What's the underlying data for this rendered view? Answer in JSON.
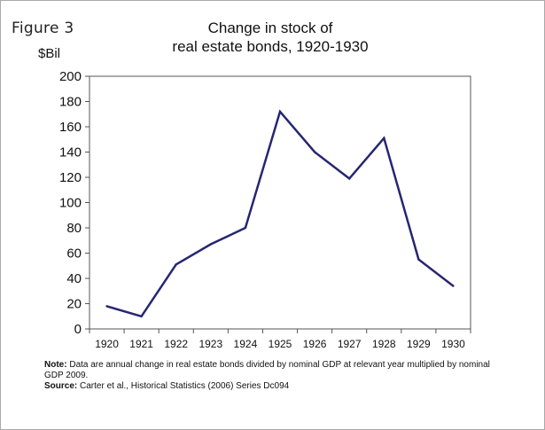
{
  "figure_label": "Figure 3",
  "chart_data": {
    "type": "line",
    "title": "Change in stock of real estate bonds, 1920-1930",
    "title_lines": [
      "Change in stock of",
      "real estate bonds, 1920-1930"
    ],
    "ylabel": "$Bil",
    "xlabel": "",
    "categories": [
      "1920",
      "1921",
      "1922",
      "1923",
      "1924",
      "1925",
      "1926",
      "1927",
      "1928",
      "1929",
      "1930"
    ],
    "series": [
      {
        "values": [
          18,
          10,
          51,
          67,
          80,
          172,
          140,
          119,
          151,
          55,
          34
        ],
        "color": "#262673"
      }
    ],
    "ylim": [
      0,
      200
    ],
    "yticks": [
      0,
      20,
      40,
      60,
      80,
      100,
      120,
      140,
      160,
      180,
      200
    ],
    "grid": false
  },
  "notes": {
    "note_label": "Note:",
    "note_text": " Data are annual change in real estate bonds divided by nominal GDP at relevant year multiplied by nominal GDP 2009.",
    "source_label": "Source:",
    "source_text": " Carter et al., Historical Statistics (2006) Series Dc094"
  }
}
